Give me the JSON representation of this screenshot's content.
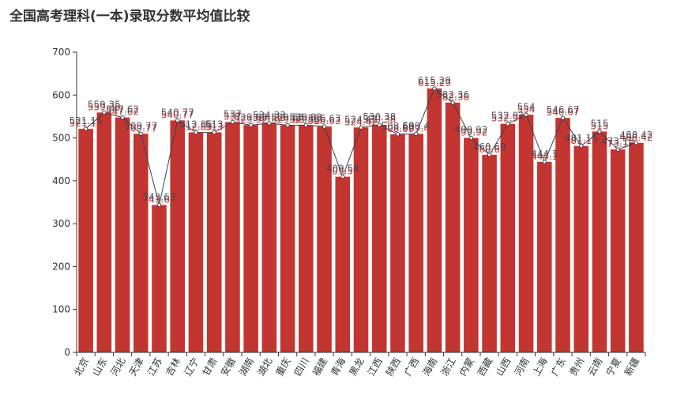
{
  "title": "全国高考理科(一本)录取分数平均值比较",
  "colors": {
    "bar": "#c23531",
    "line": "#2f4554",
    "bar_label": "#c23531",
    "line_label": "#2f4554",
    "axis": "#333333"
  },
  "chart_data": {
    "type": "bar",
    "title": "全国高考理科(一本)录取分数平均值比较",
    "xlabel": "",
    "ylabel": "",
    "ylim": [
      0,
      700
    ],
    "yticks": [
      0,
      100,
      200,
      300,
      400,
      500,
      600,
      700
    ],
    "categories": [
      "北京",
      "山东",
      "河北",
      "天津",
      "江苏",
      "吉林",
      "辽宁",
      "甘肃",
      "安徽",
      "湖南",
      "湖北",
      "重庆",
      "四川",
      "福建",
      "青海",
      "黑龙",
      "江西",
      "陕西",
      "广西",
      "海南",
      "浙江",
      "内蒙",
      "西藏",
      "山西",
      "河南",
      "上海",
      "广东",
      "贵州",
      "云南",
      "宁夏",
      "新疆"
    ],
    "series": [
      {
        "type": "bar",
        "values": [
          521.15,
          559.35,
          547.62,
          509.77,
          343.63,
          540.77,
          512.85,
          513,
          537,
          529.92,
          534.33,
          529.68,
          529.92,
          526.63,
          409.54,
          524.42,
          530.38,
          508.69,
          509.4,
          615.29,
          582.36,
          499.92,
          460.69,
          532.92,
          554,
          444.1,
          546.67,
          481.15,
          515,
          473.15,
          488.42
        ]
      },
      {
        "type": "line",
        "values": [
          521.15,
          559.35,
          547.62,
          509.77,
          343.63,
          540.77,
          512.85,
          513,
          537,
          529.92,
          534.33,
          529.68,
          529.92,
          526.63,
          409.54,
          524.42,
          530.38,
          508.69,
          509.4,
          615.29,
          582.36,
          499.92,
          460.69,
          532.92,
          554,
          444.1,
          546.67,
          481.15,
          515,
          473.15,
          488.42
        ]
      }
    ],
    "grid": false,
    "legend": "none"
  }
}
